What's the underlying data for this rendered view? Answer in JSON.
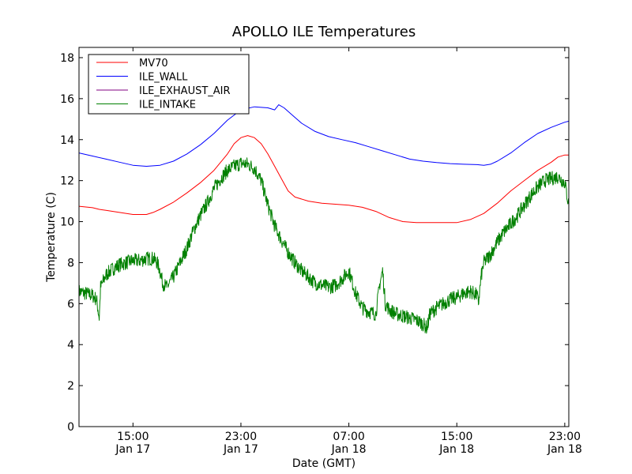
{
  "chart_data": {
    "type": "line",
    "title": "APOLLO ILE Temperatures",
    "xlabel": "Date (GMT)",
    "ylabel": "Temperature (C)",
    "x_unit": "hours",
    "xlim": [
      11.0,
      47.3
    ],
    "ylim": [
      0,
      18.5
    ],
    "yticks": [
      0,
      2,
      4,
      6,
      8,
      10,
      12,
      14,
      16,
      18
    ],
    "xticks": [
      {
        "x": 15,
        "time": "15:00",
        "date": "Jan 17"
      },
      {
        "x": 23,
        "time": "23:00",
        "date": "Jan 17"
      },
      {
        "x": 31,
        "time": "07:00",
        "date": "Jan 18"
      },
      {
        "x": 39,
        "time": "15:00",
        "date": "Jan 18"
      },
      {
        "x": 47,
        "time": "23:00",
        "date": "Jan 18"
      }
    ],
    "legend": {
      "position": "top-left"
    },
    "series": [
      {
        "name": "MV70",
        "color": "#ff0000",
        "points": [
          [
            11.0,
            10.75
          ],
          [
            12.0,
            10.68
          ],
          [
            12.5,
            10.6
          ],
          [
            13.0,
            10.55
          ],
          [
            14.0,
            10.45
          ],
          [
            15.0,
            10.35
          ],
          [
            16.0,
            10.35
          ],
          [
            16.5,
            10.45
          ],
          [
            17.0,
            10.6
          ],
          [
            18.0,
            10.95
          ],
          [
            19.0,
            11.4
          ],
          [
            20.0,
            11.9
          ],
          [
            21.0,
            12.5
          ],
          [
            22.0,
            13.3
          ],
          [
            22.5,
            13.8
          ],
          [
            23.0,
            14.1
          ],
          [
            23.5,
            14.2
          ],
          [
            24.0,
            14.1
          ],
          [
            24.5,
            13.8
          ],
          [
            25.0,
            13.3
          ],
          [
            25.5,
            12.7
          ],
          [
            26.0,
            12.1
          ],
          [
            26.5,
            11.5
          ],
          [
            27.0,
            11.2
          ],
          [
            28.0,
            11.0
          ],
          [
            29.0,
            10.9
          ],
          [
            30.0,
            10.85
          ],
          [
            31.0,
            10.8
          ],
          [
            32.0,
            10.7
          ],
          [
            33.0,
            10.5
          ],
          [
            34.0,
            10.2
          ],
          [
            35.0,
            10.0
          ],
          [
            36.0,
            9.95
          ],
          [
            37.0,
            9.95
          ],
          [
            38.0,
            9.95
          ],
          [
            39.0,
            9.95
          ],
          [
            40.0,
            10.1
          ],
          [
            41.0,
            10.4
          ],
          [
            42.0,
            10.9
          ],
          [
            43.0,
            11.5
          ],
          [
            44.0,
            12.0
          ],
          [
            45.0,
            12.5
          ],
          [
            46.0,
            12.9
          ],
          [
            46.5,
            13.15
          ],
          [
            47.0,
            13.25
          ],
          [
            47.3,
            13.25
          ]
        ]
      },
      {
        "name": "ILE_WALL",
        "color": "#0000ff",
        "points": [
          [
            11.0,
            13.35
          ],
          [
            12.0,
            13.2
          ],
          [
            13.0,
            13.05
          ],
          [
            14.0,
            12.9
          ],
          [
            15.0,
            12.75
          ],
          [
            16.0,
            12.7
          ],
          [
            17.0,
            12.75
          ],
          [
            18.0,
            12.95
          ],
          [
            19.0,
            13.3
          ],
          [
            20.0,
            13.75
          ],
          [
            21.0,
            14.3
          ],
          [
            22.0,
            14.95
          ],
          [
            23.0,
            15.45
          ],
          [
            24.0,
            15.6
          ],
          [
            25.0,
            15.55
          ],
          [
            25.5,
            15.45
          ],
          [
            25.8,
            15.7
          ],
          [
            26.2,
            15.55
          ],
          [
            26.8,
            15.2
          ],
          [
            27.5,
            14.8
          ],
          [
            28.5,
            14.4
          ],
          [
            29.5,
            14.15
          ],
          [
            30.5,
            14.0
          ],
          [
            31.5,
            13.85
          ],
          [
            32.5,
            13.65
          ],
          [
            33.5,
            13.45
          ],
          [
            34.5,
            13.25
          ],
          [
            35.5,
            13.05
          ],
          [
            36.5,
            12.95
          ],
          [
            37.5,
            12.88
          ],
          [
            38.5,
            12.83
          ],
          [
            39.5,
            12.8
          ],
          [
            40.5,
            12.78
          ],
          [
            41.0,
            12.75
          ],
          [
            41.5,
            12.8
          ],
          [
            42.0,
            12.95
          ],
          [
            43.0,
            13.35
          ],
          [
            44.0,
            13.85
          ],
          [
            45.0,
            14.3
          ],
          [
            46.0,
            14.6
          ],
          [
            47.0,
            14.85
          ],
          [
            47.3,
            14.9
          ]
        ]
      },
      {
        "name": "ILE_EXHAUST_AIR",
        "color": "#800080",
        "points": []
      },
      {
        "name": "ILE_INTAKE",
        "color": "#008000",
        "noise": 0.35,
        "points": [
          [
            11.0,
            6.6
          ],
          [
            11.5,
            6.5
          ],
          [
            12.0,
            6.4
          ],
          [
            12.3,
            6.2
          ],
          [
            12.5,
            5.3
          ],
          [
            12.6,
            6.8
          ],
          [
            13.0,
            7.4
          ],
          [
            13.5,
            7.7
          ],
          [
            14.0,
            7.9
          ],
          [
            14.5,
            8.0
          ],
          [
            15.0,
            8.1
          ],
          [
            15.5,
            8.1
          ],
          [
            16.0,
            8.2
          ],
          [
            16.5,
            8.2
          ],
          [
            16.8,
            8.0
          ],
          [
            17.0,
            7.6
          ],
          [
            17.2,
            7.0
          ],
          [
            17.5,
            6.8
          ],
          [
            18.0,
            7.3
          ],
          [
            18.5,
            8.0
          ],
          [
            19.0,
            8.7
          ],
          [
            19.5,
            9.6
          ],
          [
            20.0,
            10.3
          ],
          [
            20.5,
            10.9
          ],
          [
            21.0,
            11.6
          ],
          [
            21.5,
            12.1
          ],
          [
            22.0,
            12.5
          ],
          [
            22.5,
            12.7
          ],
          [
            23.0,
            12.85
          ],
          [
            23.5,
            12.8
          ],
          [
            24.0,
            12.6
          ],
          [
            24.5,
            12.0
          ],
          [
            25.0,
            10.8
          ],
          [
            25.5,
            9.8
          ],
          [
            26.0,
            9.1
          ],
          [
            26.5,
            8.5
          ],
          [
            27.0,
            8.0
          ],
          [
            27.5,
            7.6
          ],
          [
            28.0,
            7.3
          ],
          [
            28.5,
            7.0
          ],
          [
            29.0,
            6.9
          ],
          [
            29.5,
            6.8
          ],
          [
            30.0,
            6.9
          ],
          [
            30.5,
            7.2
          ],
          [
            31.0,
            7.6
          ],
          [
            31.5,
            6.5
          ],
          [
            32.0,
            5.8
          ],
          [
            32.5,
            5.6
          ],
          [
            33.0,
            5.5
          ],
          [
            33.3,
            7.0
          ],
          [
            33.5,
            7.6
          ],
          [
            33.7,
            6.0
          ],
          [
            34.0,
            5.7
          ],
          [
            34.5,
            5.5
          ],
          [
            35.0,
            5.4
          ],
          [
            35.5,
            5.3
          ],
          [
            36.0,
            5.2
          ],
          [
            36.5,
            5.0
          ],
          [
            36.8,
            4.8
          ],
          [
            37.0,
            5.5
          ],
          [
            37.5,
            5.8
          ],
          [
            38.0,
            6.0
          ],
          [
            38.5,
            6.2
          ],
          [
            39.0,
            6.3
          ],
          [
            39.5,
            6.5
          ],
          [
            40.0,
            6.6
          ],
          [
            40.5,
            6.4
          ],
          [
            40.6,
            6.0
          ],
          [
            40.8,
            7.3
          ],
          [
            41.0,
            8.0
          ],
          [
            41.5,
            8.4
          ],
          [
            42.0,
            9.0
          ],
          [
            42.5,
            9.5
          ],
          [
            43.0,
            9.9
          ],
          [
            43.5,
            10.3
          ],
          [
            44.0,
            10.8
          ],
          [
            44.5,
            11.3
          ],
          [
            45.0,
            11.7
          ],
          [
            45.5,
            12.0
          ],
          [
            46.0,
            12.1
          ],
          [
            46.5,
            12.2
          ],
          [
            47.0,
            11.9
          ],
          [
            47.3,
            10.8
          ]
        ]
      }
    ]
  }
}
